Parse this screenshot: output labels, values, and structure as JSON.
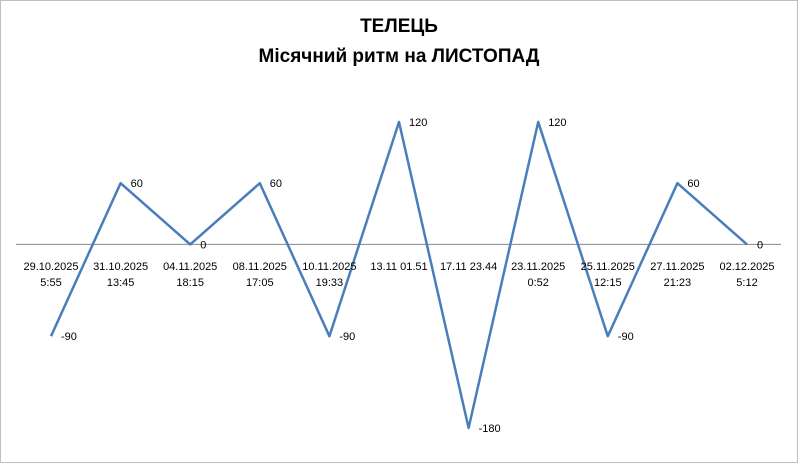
{
  "chart_data": {
    "type": "line",
    "title": "ТЕЛЕЦЬ",
    "subtitle": "Місячний ритм на ЛИСТОПАД",
    "categories": [
      [
        "29.10.2025",
        "5:55"
      ],
      [
        "31.10.2025",
        "13:45"
      ],
      [
        "04.11.2025",
        "18:15"
      ],
      [
        "08.11.2025",
        "17:05"
      ],
      [
        "10.11.2025",
        "19:33"
      ],
      [
        "13.11 01.51"
      ],
      [
        "17.11 23.44"
      ],
      [
        "23.11.2025",
        "0:52"
      ],
      [
        "25.11.2025",
        "12:15"
      ],
      [
        "27.11.2025",
        "21:23"
      ],
      [
        "02.12.2025",
        "5:12"
      ]
    ],
    "values": [
      -90,
      60,
      0,
      60,
      -90,
      120,
      -180,
      120,
      -90,
      60,
      0
    ],
    "data_labels": [
      "-90",
      "60",
      "0",
      "60",
      "-90",
      "120",
      "-180",
      "120",
      "-90",
      "60",
      "0"
    ],
    "ylim": [
      -180,
      120
    ],
    "grid": false,
    "legend": "none",
    "line_color": "#4a7ebb",
    "axis_color": "#868686"
  }
}
